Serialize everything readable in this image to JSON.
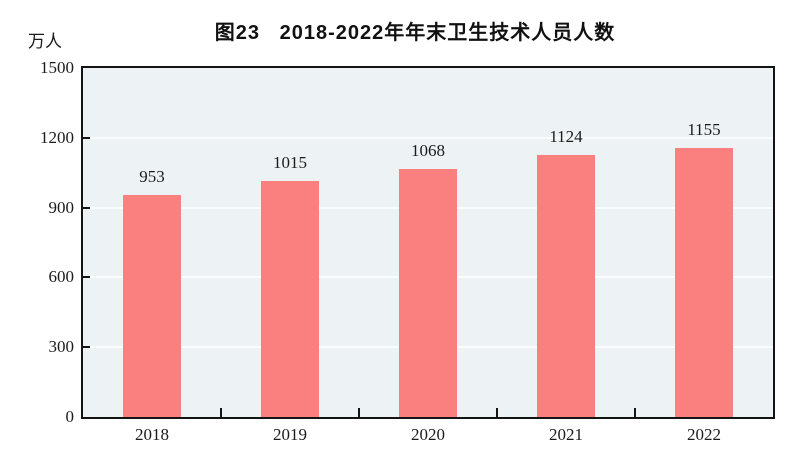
{
  "page": {
    "background": "#ffffff"
  },
  "chart_data": {
    "type": "bar",
    "title": "图23   2018-2022年年末卫生技术人员人数",
    "unit_label": "万人",
    "categories": [
      "2018",
      "2019",
      "2020",
      "2021",
      "2022"
    ],
    "values": [
      953,
      1015,
      1068,
      1124,
      1155
    ],
    "xlabel": "",
    "ylabel": "万人",
    "ylim": [
      0,
      1500
    ],
    "yticks": [
      0,
      300,
      600,
      900,
      1200,
      1500
    ],
    "grid": "horizontal",
    "legend_position": "none",
    "colors": {
      "bar": "#FA8080",
      "plot_background": "#EDF2F5",
      "gridline": "#F9FCFD",
      "axis": "#141414",
      "text": "#1b1b1b"
    }
  }
}
